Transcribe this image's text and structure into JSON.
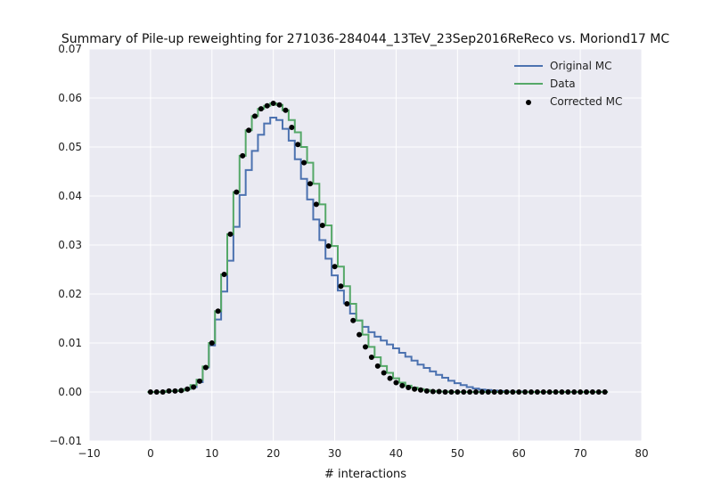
{
  "chart_data": {
    "type": "line",
    "title": "Summary of Pile-up reweighting for 271036-284044_13TeV_23Sep2016ReReco vs. Moriond17 MC",
    "xlabel": "# interactions",
    "ylabel": "",
    "xlim": [
      -10,
      80
    ],
    "ylim": [
      -0.01,
      0.07
    ],
    "xticks": [
      "−10",
      "0",
      "10",
      "20",
      "30",
      "40",
      "50",
      "60",
      "70",
      "80"
    ],
    "yticks": [
      "−0.01",
      "0.00",
      "0.01",
      "0.02",
      "0.03",
      "0.04",
      "0.05",
      "0.06",
      "0.07"
    ],
    "grid": true,
    "legend_position": "top-right",
    "x": [
      0,
      1,
      2,
      3,
      4,
      5,
      6,
      7,
      8,
      9,
      10,
      11,
      12,
      13,
      14,
      15,
      16,
      17,
      18,
      19,
      20,
      21,
      22,
      23,
      24,
      25,
      26,
      27,
      28,
      29,
      30,
      31,
      32,
      33,
      34,
      35,
      36,
      37,
      38,
      39,
      40,
      41,
      42,
      43,
      44,
      45,
      46,
      47,
      48,
      49,
      50,
      51,
      52,
      53,
      54,
      55,
      56,
      57,
      58,
      59,
      60,
      61,
      62,
      63,
      64,
      65,
      66,
      67,
      68,
      69,
      70,
      71,
      72,
      73,
      74
    ],
    "series": [
      {
        "name": "Original MC",
        "kind": "step",
        "color": "#4c72b0",
        "values": [
          0.0,
          0.0,
          0.0,
          0.0002,
          0.0002,
          0.0003,
          0.0006,
          0.001,
          0.002,
          0.005,
          0.0095,
          0.0148,
          0.0205,
          0.0268,
          0.0337,
          0.0402,
          0.0453,
          0.0492,
          0.0525,
          0.0548,
          0.056,
          0.0555,
          0.0537,
          0.0513,
          0.0475,
          0.0435,
          0.0393,
          0.0352,
          0.031,
          0.0272,
          0.0238,
          0.0207,
          0.0181,
          0.016,
          0.0146,
          0.0133,
          0.0122,
          0.0113,
          0.0105,
          0.0097,
          0.0089,
          0.008,
          0.0072,
          0.0064,
          0.0056,
          0.0049,
          0.0042,
          0.0035,
          0.0029,
          0.0023,
          0.0018,
          0.0014,
          0.001,
          0.0007,
          0.0005,
          0.0004,
          0.0003,
          0.0002,
          0.0001,
          0.0001,
          0.0001,
          0.0,
          0.0,
          0.0,
          0.0,
          0.0,
          0.0,
          0.0,
          0.0,
          0.0,
          0.0,
          0.0,
          0.0,
          0.0,
          0.0
        ]
      },
      {
        "name": "Data",
        "kind": "step",
        "color": "#55a868",
        "values": [
          0.0,
          0.0,
          0.0,
          0.0002,
          0.0002,
          0.0003,
          0.0006,
          0.0014,
          0.0025,
          0.0052,
          0.01,
          0.0165,
          0.024,
          0.0322,
          0.0408,
          0.0482,
          0.0534,
          0.0563,
          0.0578,
          0.0584,
          0.0589,
          0.0586,
          0.0575,
          0.0555,
          0.053,
          0.05,
          0.0468,
          0.0425,
          0.0383,
          0.034,
          0.0298,
          0.0256,
          0.0216,
          0.018,
          0.0146,
          0.0117,
          0.0092,
          0.0071,
          0.0053,
          0.0039,
          0.0028,
          0.0019,
          0.0013,
          0.0009,
          0.0006,
          0.0004,
          0.0002,
          0.0001,
          0.0001,
          0.0,
          0.0,
          0.0,
          0.0,
          0.0,
          0.0,
          0.0,
          0.0,
          0.0,
          0.0,
          0.0,
          0.0,
          0.0,
          0.0,
          0.0,
          0.0,
          0.0,
          0.0,
          0.0,
          0.0,
          0.0,
          0.0,
          0.0,
          0.0,
          0.0,
          0.0
        ]
      },
      {
        "name": "Corrected MC",
        "kind": "scatter",
        "color": "#000000",
        "values": [
          0.0,
          0.0,
          0.0,
          0.0002,
          0.0002,
          0.0003,
          0.0006,
          0.001,
          0.0022,
          0.005,
          0.01,
          0.0165,
          0.024,
          0.0322,
          0.0408,
          0.0482,
          0.0534,
          0.0563,
          0.0578,
          0.0584,
          0.0589,
          0.0586,
          0.0575,
          0.054,
          0.0505,
          0.0468,
          0.0425,
          0.0383,
          0.034,
          0.0298,
          0.0256,
          0.0216,
          0.018,
          0.0146,
          0.0117,
          0.0092,
          0.0071,
          0.0053,
          0.0039,
          0.0028,
          0.0019,
          0.0013,
          0.0009,
          0.0006,
          0.0004,
          0.0002,
          0.0001,
          0.0001,
          0.0,
          0.0,
          0.0,
          0.0,
          0.0,
          0.0,
          0.0,
          0.0,
          0.0,
          0.0,
          0.0,
          0.0,
          0.0,
          0.0,
          0.0,
          0.0,
          0.0,
          0.0,
          0.0,
          0.0,
          0.0,
          0.0,
          0.0,
          0.0,
          0.0,
          0.0,
          0.0
        ]
      }
    ],
    "colors": {
      "plot_background": "#eaeaf2",
      "grid": "#ffffff"
    }
  }
}
